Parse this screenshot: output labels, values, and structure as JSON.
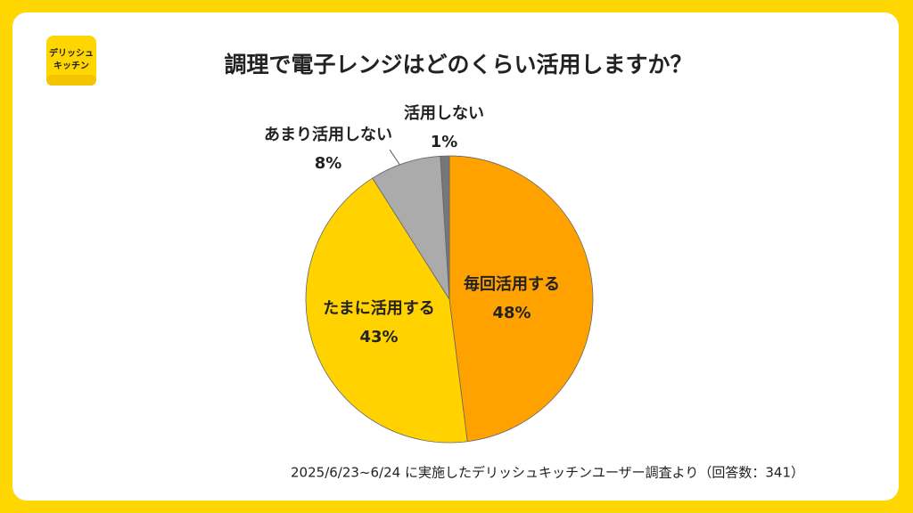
{
  "logo": {
    "lines": [
      "デリッシュ",
      "キッチン"
    ]
  },
  "chart_data": {
    "type": "pie",
    "title": "調理で電子レンジはどのくらい活用しますか？",
    "categories": [
      "毎回活用する",
      "たまに活用する",
      "あまり活用しない",
      "活用しない"
    ],
    "values": [
      48,
      43,
      8,
      1
    ],
    "value_labels": [
      "48%",
      "43%",
      "8%",
      "1%"
    ],
    "colors": [
      "#FFA200",
      "#FFD200",
      "#ABABAB",
      "#777777"
    ],
    "note": "2025/6/23~6/24 に実施したデリッシュキッチンユーザー調査より（回答数：341）"
  }
}
